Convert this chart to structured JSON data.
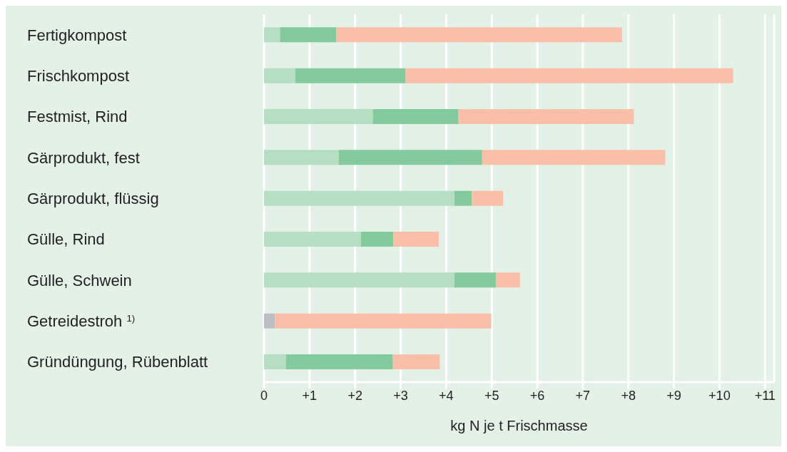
{
  "chart_data": {
    "type": "bar",
    "orientation": "horizontal",
    "stacked": true,
    "xlabel": "kg N je t Frischmasse",
    "categories": [
      "Fertigkompost",
      "Frischkompost",
      "Festmist, Rind",
      "Gärprodukt, fest",
      "Gärprodukt, flüssig",
      "Gülle, Rind",
      "Gülle, Schwein",
      "Getreidestroh $^{1)}$",
      "Gründüngung, Rübenblatt"
    ],
    "series": [
      {
        "color": "#b5dec3",
        "values": [
          0.35,
          0.69,
          2.39,
          1.64,
          4.18,
          2.13,
          4.18,
          null,
          0.48
        ]
      },
      {
        "color": "#bcbec4",
        "values": [
          null,
          null,
          null,
          null,
          null,
          null,
          null,
          0.24,
          null
        ]
      },
      {
        "color": "#83cb9d",
        "values": [
          1.24,
          2.42,
          1.88,
          3.15,
          0.38,
          0.71,
          0.91,
          null,
          2.35
        ]
      },
      {
        "color": "#fabfa8",
        "values": [
          6.27,
          7.19,
          3.85,
          4.02,
          0.69,
          1.0,
          0.53,
          4.75,
          1.03
        ]
      }
    ],
    "xlim": [
      0,
      11.2
    ],
    "xticks": [
      0,
      {
        "value": 1,
        "label": "+1"
      },
      {
        "value": 2,
        "label": "+2"
      },
      {
        "value": 3,
        "label": "+3"
      },
      {
        "value": 4,
        "label": "+4"
      },
      {
        "value": 5,
        "label": "+5"
      },
      {
        "value": 6,
        "label": "+6"
      },
      {
        "value": 7,
        "label": "+7"
      },
      {
        "value": 8,
        "label": "+8"
      },
      {
        "value": 9,
        "label": "+9"
      },
      {
        "value": 10,
        "label": "+10"
      },
      {
        "value": 11,
        "label": "+11"
      }
    ],
    "grid": "x",
    "legend": false
  }
}
